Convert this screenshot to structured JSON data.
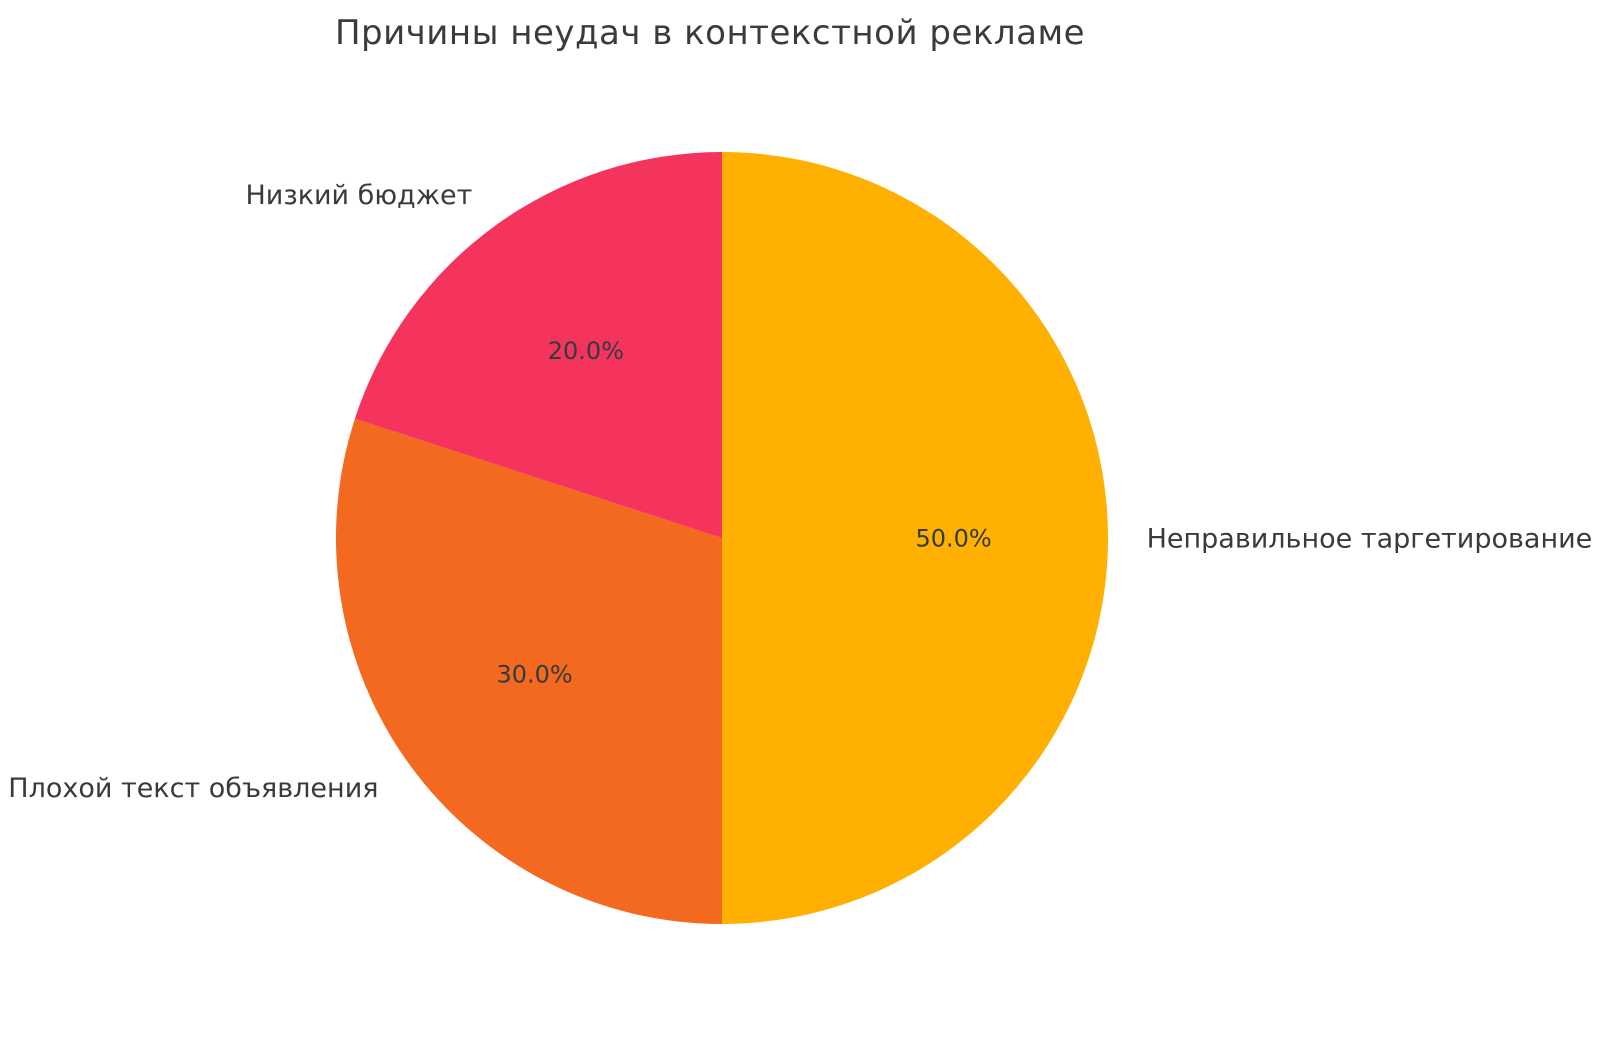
{
  "chart_data": {
    "type": "pie",
    "title": "Причины неудач в контекстной рекламе",
    "labels": [
      "Неправильное таргетирование",
      "Плохой текст объявления",
      "Низкий бюджет"
    ],
    "values": [
      50,
      30,
      20
    ],
    "percent_labels": [
      "50.0%",
      "30.0%",
      "20.0%"
    ],
    "colors": [
      "#FFB000",
      "#F2691F",
      "#F4345C"
    ],
    "start_angle": "top",
    "direction": "clockwise",
    "legend": "none",
    "label_position": "outside",
    "percent_distance": 0.6,
    "label_distance": 1.1
  },
  "style": {
    "background_color": "#FFFFFF",
    "title_color": "#3B3B3B",
    "label_color": "#3A3A3A",
    "percent_color": "#333A40"
  }
}
